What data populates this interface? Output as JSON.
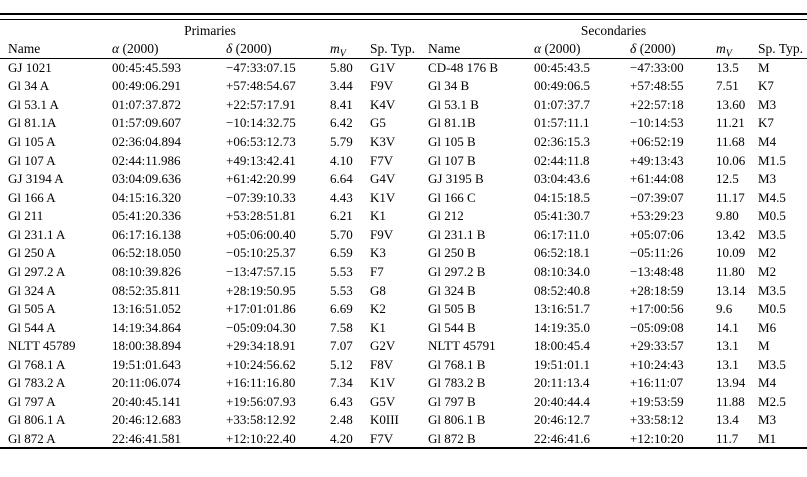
{
  "page": {
    "background_color": "#ffffff",
    "text_color": "#000000"
  },
  "table": {
    "group_headers": {
      "primaries": "Primaries",
      "secondaries": "Secondaries"
    },
    "headers": {
      "name": "Name",
      "alpha_symbol": "α",
      "delta_symbol": "δ",
      "epoch": "(2000)",
      "mv_letter": "m",
      "mv_subscript": "V",
      "sp_typ": "Sp. Typ."
    },
    "rows": [
      {
        "p": {
          "name": "GJ 1021",
          "ra": "00:45:45.593",
          "dec": "−47:33:07.15",
          "mv": "5.80",
          "sp": "G1V"
        },
        "s": {
          "name": "CD-48 176 B",
          "ra": "00:45:43.5",
          "dec": "−47:33:00",
          "mv": "13.5",
          "sp": "M"
        }
      },
      {
        "p": {
          "name": "Gl 34 A",
          "ra": "00:49:06.291",
          "dec": "+57:48:54.67",
          "mv": "3.44",
          "sp": "F9V"
        },
        "s": {
          "name": "Gl 34 B",
          "ra": "00:49:06.5",
          "dec": "+57:48:55",
          "mv": "7.51",
          "sp": "K7"
        }
      },
      {
        "p": {
          "name": "Gl 53.1 A",
          "ra": "01:07:37.872",
          "dec": "+22:57:17.91",
          "mv": "8.41",
          "sp": "K4V"
        },
        "s": {
          "name": "Gl 53.1 B",
          "ra": "01:07:37.7",
          "dec": "+22:57:18",
          "mv": "13.60",
          "sp": "M3"
        }
      },
      {
        "p": {
          "name": "Gl 81.1A",
          "ra": "01:57:09.607",
          "dec": "−10:14:32.75",
          "mv": "6.42",
          "sp": "G5"
        },
        "s": {
          "name": "Gl 81.1B",
          "ra": "01:57:11.1",
          "dec": "−10:14:53",
          "mv": "11.21",
          "sp": "K7"
        }
      },
      {
        "p": {
          "name": "Gl 105 A",
          "ra": "02:36:04.894",
          "dec": "+06:53:12.73",
          "mv": "5.79",
          "sp": "K3V"
        },
        "s": {
          "name": "Gl 105 B",
          "ra": "02:36:15.3",
          "dec": "+06:52:19",
          "mv": "11.68",
          "sp": "M4"
        }
      },
      {
        "p": {
          "name": "Gl 107 A",
          "ra": "02:44:11.986",
          "dec": "+49:13:42.41",
          "mv": "4.10",
          "sp": "F7V"
        },
        "s": {
          "name": "Gl 107 B",
          "ra": "02:44:11.8",
          "dec": "+49:13:43",
          "mv": "10.06",
          "sp": "M1.5"
        }
      },
      {
        "p": {
          "name": "GJ 3194 A",
          "ra": "03:04:09.636",
          "dec": "+61:42:20.99",
          "mv": "6.64",
          "sp": "G4V"
        },
        "s": {
          "name": "GJ 3195 B",
          "ra": "03:04:43.6",
          "dec": "+61:44:08",
          "mv": "12.5",
          "sp": "M3"
        }
      },
      {
        "p": {
          "name": "Gl 166 A",
          "ra": "04:15:16.320",
          "dec": "−07:39:10.33",
          "mv": "4.43",
          "sp": "K1V"
        },
        "s": {
          "name": "Gl 166 C",
          "ra": "04:15:18.5",
          "dec": "−07:39:07",
          "mv": "11.17",
          "sp": "M4.5"
        }
      },
      {
        "p": {
          "name": "Gl 211",
          "ra": "05:41:20.336",
          "dec": "+53:28:51.81",
          "mv": "6.21",
          "sp": "K1"
        },
        "s": {
          "name": "Gl 212",
          "ra": "05:41:30.7",
          "dec": "+53:29:23",
          "mv": "9.80",
          "sp": "M0.5"
        }
      },
      {
        "p": {
          "name": "Gl 231.1 A",
          "ra": "06:17:16.138",
          "dec": "+05:06:00.40",
          "mv": "5.70",
          "sp": "F9V"
        },
        "s": {
          "name": "Gl 231.1 B",
          "ra": "06:17:11.0",
          "dec": "+05:07:06",
          "mv": "13.42",
          "sp": "M3.5"
        }
      },
      {
        "p": {
          "name": "Gl 250 A",
          "ra": "06:52:18.050",
          "dec": "−05:10:25.37",
          "mv": "6.59",
          "sp": "K3"
        },
        "s": {
          "name": "Gl 250 B",
          "ra": "06:52:18.1",
          "dec": "−05:11:26",
          "mv": "10.09",
          "sp": "M2"
        }
      },
      {
        "p": {
          "name": "Gl 297.2 A",
          "ra": "08:10:39.826",
          "dec": "−13:47:57.15",
          "mv": "5.53",
          "sp": "F7"
        },
        "s": {
          "name": "Gl 297.2 B",
          "ra": "08:10:34.0",
          "dec": "−13:48:48",
          "mv": "11.80",
          "sp": "M2"
        }
      },
      {
        "p": {
          "name": "Gl 324 A",
          "ra": "08:52:35.811",
          "dec": "+28:19:50.95",
          "mv": "5.53",
          "sp": "G8"
        },
        "s": {
          "name": "Gl 324 B",
          "ra": "08:52:40.8",
          "dec": "+28:18:59",
          "mv": "13.14",
          "sp": "M3.5"
        }
      },
      {
        "p": {
          "name": "Gl 505 A",
          "ra": "13:16:51.052",
          "dec": "+17:01:01.86",
          "mv": "6.69",
          "sp": "K2"
        },
        "s": {
          "name": "Gl 505 B",
          "ra": "13:16:51.7",
          "dec": "+17:00:56",
          "mv": "9.6",
          "sp": "M0.5"
        }
      },
      {
        "p": {
          "name": "Gl 544 A",
          "ra": "14:19:34.864",
          "dec": "−05:09:04.30",
          "mv": "7.58",
          "sp": "K1"
        },
        "s": {
          "name": "Gl 544 B",
          "ra": "14:19:35.0",
          "dec": "−05:09:08",
          "mv": "14.1",
          "sp": "M6"
        }
      },
      {
        "p": {
          "name": "NLTT 45789",
          "ra": "18:00:38.894",
          "dec": "+29:34:18.91",
          "mv": "7.07",
          "sp": "G2V"
        },
        "s": {
          "name": "NLTT 45791",
          "ra": "18:00:45.4",
          "dec": "+29:33:57",
          "mv": "13.1",
          "sp": "M"
        }
      },
      {
        "p": {
          "name": "Gl 768.1 A",
          "ra": "19:51:01.643",
          "dec": "+10:24:56.62",
          "mv": "5.12",
          "sp": "F8V"
        },
        "s": {
          "name": "Gl 768.1 B",
          "ra": "19:51:01.1",
          "dec": "+10:24:43",
          "mv": "13.1",
          "sp": "M3.5"
        }
      },
      {
        "p": {
          "name": "Gl 783.2 A",
          "ra": "20:11:06.074",
          "dec": "+16:11:16.80",
          "mv": "7.34",
          "sp": "K1V"
        },
        "s": {
          "name": "Gl 783.2 B",
          "ra": "20:11:13.4",
          "dec": "+16:11:07",
          "mv": "13.94",
          "sp": "M4"
        }
      },
      {
        "p": {
          "name": "Gl 797 A",
          "ra": "20:40:45.141",
          "dec": "+19:56:07.93",
          "mv": "6.43",
          "sp": "G5V"
        },
        "s": {
          "name": "Gl 797 B",
          "ra": "20:40:44.4",
          "dec": "+19:53:59",
          "mv": "11.88",
          "sp": "M2.5"
        }
      },
      {
        "p": {
          "name": "Gl 806.1 A",
          "ra": "20:46:12.683",
          "dec": "+33:58:12.92",
          "mv": "2.48",
          "sp": "K0III"
        },
        "s": {
          "name": "Gl 806.1 B",
          "ra": "20:46:12.7",
          "dec": "+33:58:12",
          "mv": "13.4",
          "sp": "M3"
        }
      },
      {
        "p": {
          "name": "Gl 872 A",
          "ra": "22:46:41.581",
          "dec": "+12:10:22.40",
          "mv": "4.20",
          "sp": "F7V"
        },
        "s": {
          "name": "Gl 872 B",
          "ra": "22:46:41.6",
          "dec": "+12:10:20",
          "mv": "11.7",
          "sp": "M1"
        }
      }
    ]
  }
}
